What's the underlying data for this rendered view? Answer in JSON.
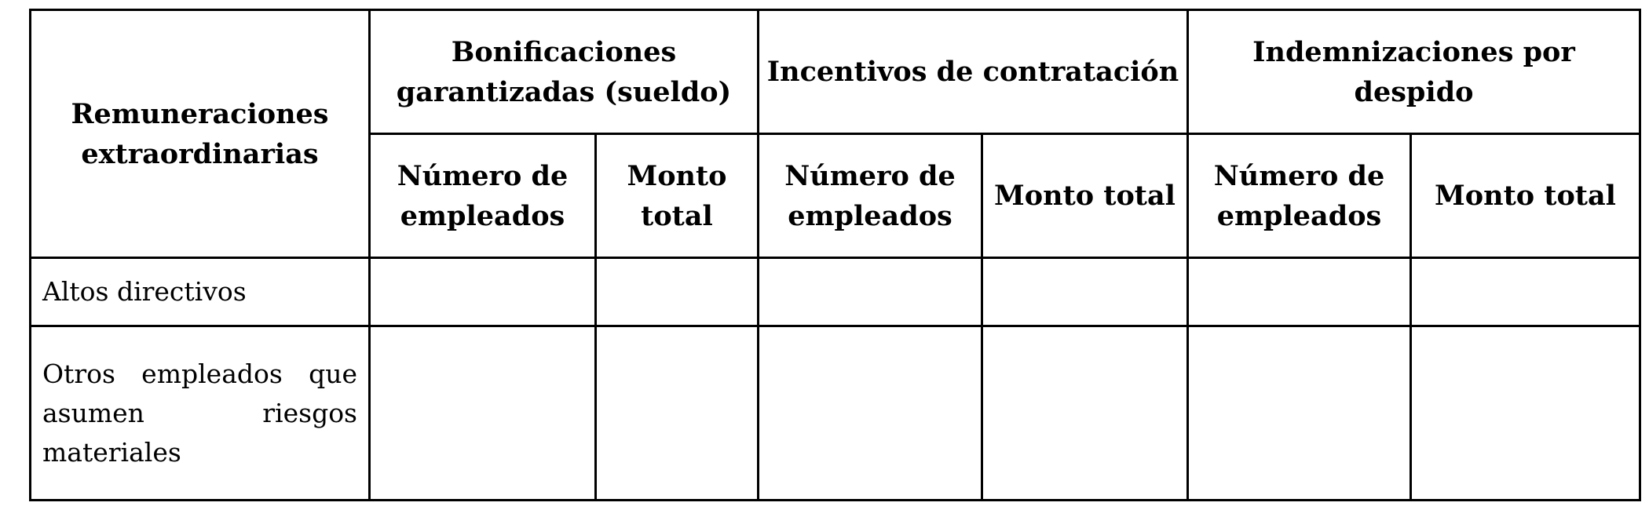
{
  "table": {
    "corner_header": "Remuneraciones extraordinarias",
    "groups": [
      {
        "label": "Bonificaciones garantizadas (sueldo)"
      },
      {
        "label": "Incentivos de contratación"
      },
      {
        "label": "Indemnizaciones por despido"
      }
    ],
    "subheaders": {
      "count": "Número de empleados",
      "amount": "Monto total"
    },
    "rows": [
      {
        "label": "Altos directivos",
        "values": [
          "",
          "",
          "",
          "",
          "",
          ""
        ]
      },
      {
        "label": "Otros empleados que asumen riesgos materiales",
        "values": [
          "",
          "",
          "",
          "",
          "",
          ""
        ]
      }
    ]
  }
}
